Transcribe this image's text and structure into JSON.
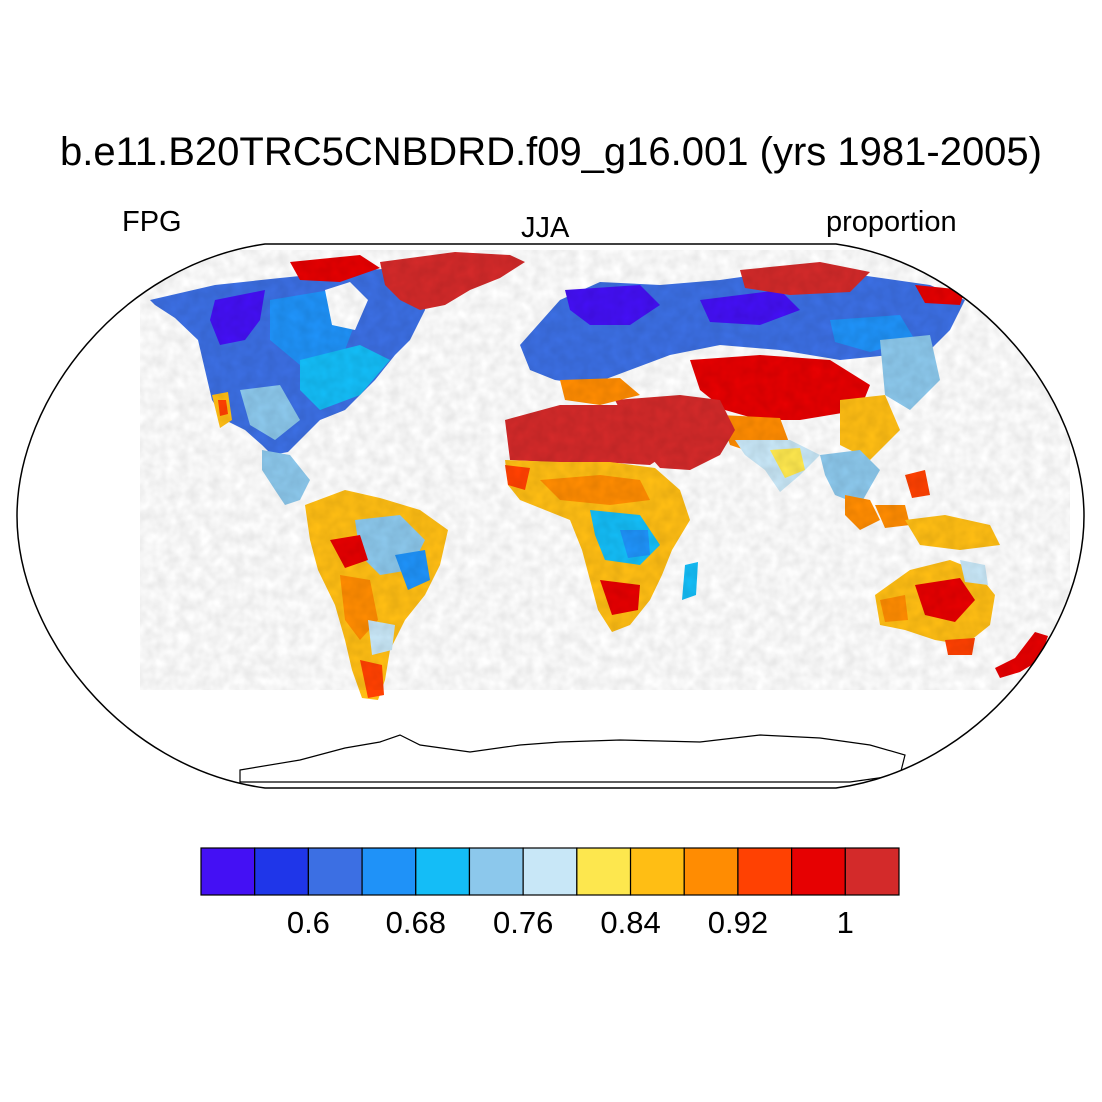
{
  "title": "b.e11.B20TRC5CNBDRD.f09_g16.001 (yrs 1981-2005)",
  "left_label": "FPG",
  "center_label": "JJA",
  "right_label": "proportion",
  "colorbar": {
    "colors": [
      "#4410F4",
      "#1F36E9",
      "#3C6FE3",
      "#1F92F8",
      "#14BDF7",
      "#8CC8EC",
      "#C8E7F7",
      "#FDE74E",
      "#FFBE14",
      "#FF8C02",
      "#FF4102",
      "#E60102",
      "#D32A2A"
    ],
    "tick_labels": [
      "0.6",
      "0.68",
      "0.76",
      "0.84",
      "0.92",
      "1"
    ]
  }
}
